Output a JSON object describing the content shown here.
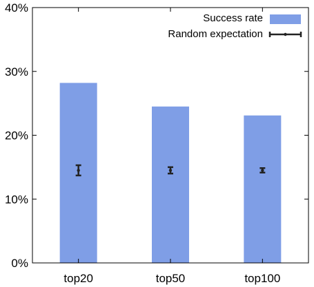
{
  "chart_data": {
    "type": "bar",
    "title": "",
    "xlabel": "",
    "ylabel": "",
    "categories": [
      "top20",
      "top50",
      "top100"
    ],
    "ylim": [
      0,
      40
    ],
    "yticks": [
      0,
      10,
      20,
      30,
      40
    ],
    "ytick_labels": [
      "0%",
      "10%",
      "20%",
      "30%",
      "40%"
    ],
    "grid": false,
    "legend_position": "top-right",
    "series": [
      {
        "name": "Success rate",
        "kind": "bar",
        "color": "#7f9ee6",
        "values": [
          28.2,
          24.5,
          23.1
        ]
      },
      {
        "name": "Random expectation",
        "kind": "errorbar",
        "color": "#222222",
        "values": [
          14.5,
          14.5,
          14.5
        ],
        "error": [
          0.8,
          0.5,
          0.35
        ]
      }
    ]
  }
}
